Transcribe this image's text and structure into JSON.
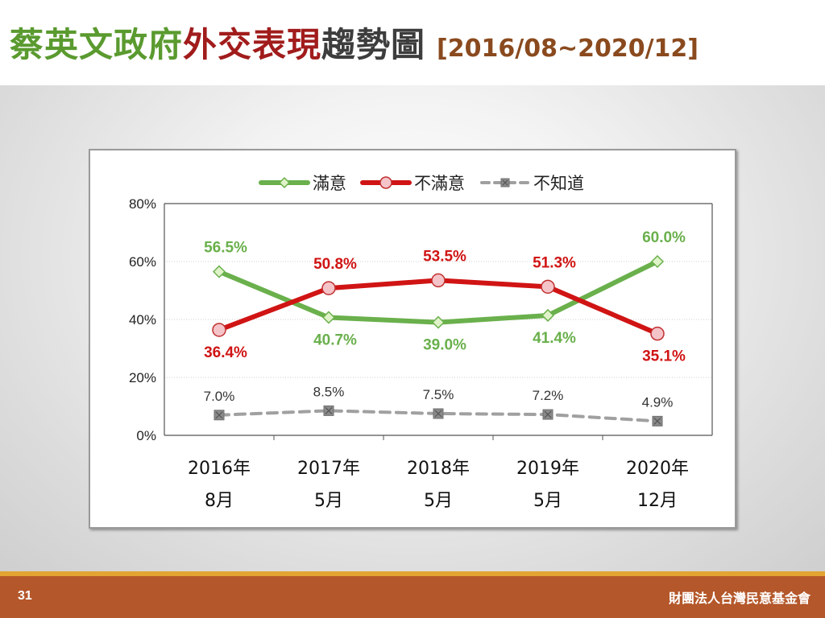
{
  "slide": {
    "title_part1": "蔡英文政府",
    "title_part2": "外交表現",
    "title_part3": "趨勢圖",
    "title_range": "[2016/08~2020/12]",
    "page_number": "31",
    "organization": "財團法人台灣民意基金會"
  },
  "colors": {
    "title_green": "#5a9a2f",
    "title_red": "#a11c1c",
    "title_dark": "#3d3d3d",
    "range_brown": "#8a4a1e",
    "satisfied": "#6ab04c",
    "dissatisfied": "#d01414",
    "unknown": "#a0a0a0"
  },
  "chart_data": {
    "type": "line",
    "categories": [
      [
        "2016年",
        "8月"
      ],
      [
        "2017年",
        "5月"
      ],
      [
        "2018年",
        "5月"
      ],
      [
        "2019年",
        "5月"
      ],
      [
        "2020年",
        "12月"
      ]
    ],
    "ylim": [
      0,
      80
    ],
    "yticks": [
      "0%",
      "20%",
      "40%",
      "60%",
      "80%"
    ],
    "ytick_values": [
      0,
      20,
      40,
      60,
      80
    ],
    "grid": true,
    "legend_position": "top",
    "series": [
      {
        "name": "滿意",
        "values": [
          56.5,
          40.7,
          39.0,
          41.4,
          60.0
        ],
        "labels": [
          "56.5%",
          "40.7%",
          "39.0%",
          "41.4%",
          "60.0%"
        ]
      },
      {
        "name": "不滿意",
        "values": [
          36.4,
          50.8,
          53.5,
          51.3,
          35.1
        ],
        "labels": [
          "36.4%",
          "50.8%",
          "53.5%",
          "51.3%",
          "35.1%"
        ]
      },
      {
        "name": "不知道",
        "values": [
          7.0,
          8.5,
          7.5,
          7.2,
          4.9
        ],
        "labels": [
          "7.0%",
          "8.5%",
          "7.5%",
          "7.2%",
          "4.9%"
        ]
      }
    ]
  }
}
